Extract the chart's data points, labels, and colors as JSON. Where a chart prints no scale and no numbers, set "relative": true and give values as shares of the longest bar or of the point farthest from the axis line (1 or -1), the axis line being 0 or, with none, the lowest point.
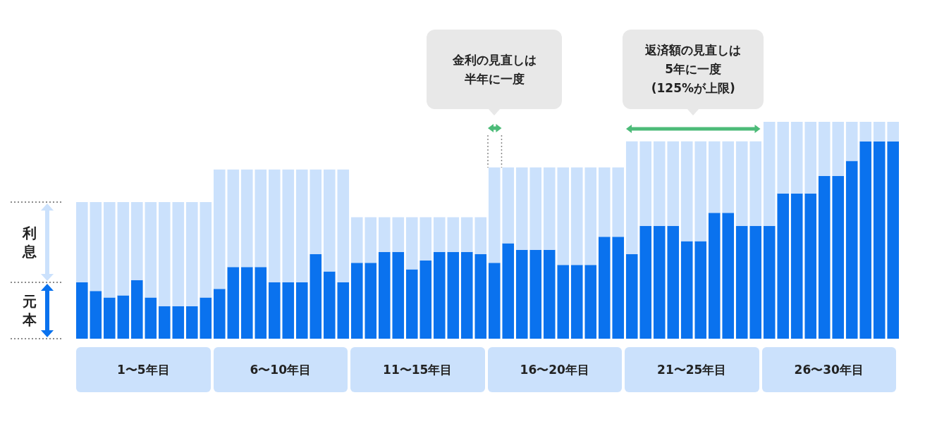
{
  "chart_data": {
    "type": "bar",
    "stacked": true,
    "relative": true,
    "legend": "left",
    "categories": [
      null,
      null,
      null,
      null,
      null,
      null,
      null,
      null,
      null,
      null,
      null,
      null,
      null,
      null,
      null,
      null,
      null,
      null,
      null,
      null,
      null,
      null,
      null,
      null,
      null,
      null,
      null,
      null,
      null,
      null,
      null,
      null,
      null,
      null,
      null,
      null,
      null,
      null,
      null,
      null,
      null,
      null,
      null,
      null,
      null,
      null,
      null,
      null,
      null,
      null,
      null,
      null,
      null,
      null,
      null,
      null,
      null,
      null,
      null,
      null
    ],
    "series": [
      {
        "name": "元本",
        "color": "#0a72ee",
        "values": [
          0.26,
          0.22,
          0.19,
          0.2,
          0.27,
          0.19,
          0.15,
          0.15,
          0.15,
          0.19,
          0.23,
          0.33,
          0.33,
          0.33,
          0.26,
          0.26,
          0.26,
          0.39,
          0.31,
          0.26,
          0.35,
          0.35,
          0.4,
          0.4,
          0.32,
          0.36,
          0.4,
          0.4,
          0.4,
          0.39,
          0.35,
          0.44,
          0.41,
          0.41,
          0.41,
          0.34,
          0.34,
          0.34,
          0.47,
          0.47,
          0.39,
          0.52,
          0.52,
          0.52,
          0.45,
          0.45,
          0.58,
          0.58,
          0.52,
          0.52,
          0.52,
          0.67,
          0.67,
          0.67,
          0.75,
          0.75,
          0.82,
          0.91,
          0.91,
          0.91
        ]
      },
      {
        "name": "利息",
        "color": "#cbe1fc",
        "values": [
          0.37,
          0.41,
          0.44,
          0.43,
          0.36,
          0.44,
          0.48,
          0.48,
          0.48,
          0.44,
          0.55,
          0.45,
          0.45,
          0.45,
          0.52,
          0.52,
          0.52,
          0.39,
          0.47,
          0.52,
          0.21,
          0.21,
          0.16,
          0.16,
          0.24,
          0.2,
          0.16,
          0.16,
          0.16,
          0.17,
          0.44,
          0.35,
          0.38,
          0.38,
          0.38,
          0.45,
          0.45,
          0.45,
          0.32,
          0.32,
          0.52,
          0.39,
          0.39,
          0.39,
          0.46,
          0.46,
          0.33,
          0.33,
          0.39,
          0.39,
          0.48,
          0.33,
          0.33,
          0.33,
          0.25,
          0.25,
          0.18,
          0.09,
          0.09,
          0.09
        ]
      }
    ],
    "annotations": [
      "金利の見直しは",
      "半年に一度",
      "返済額の見直しは",
      "5年に一度",
      "(125%が上限)",
      "1〜5年目",
      "6〜10年目",
      "11〜15年目",
      "16〜20年目",
      "21〜25年目",
      "26〜30年目"
    ]
  }
}
